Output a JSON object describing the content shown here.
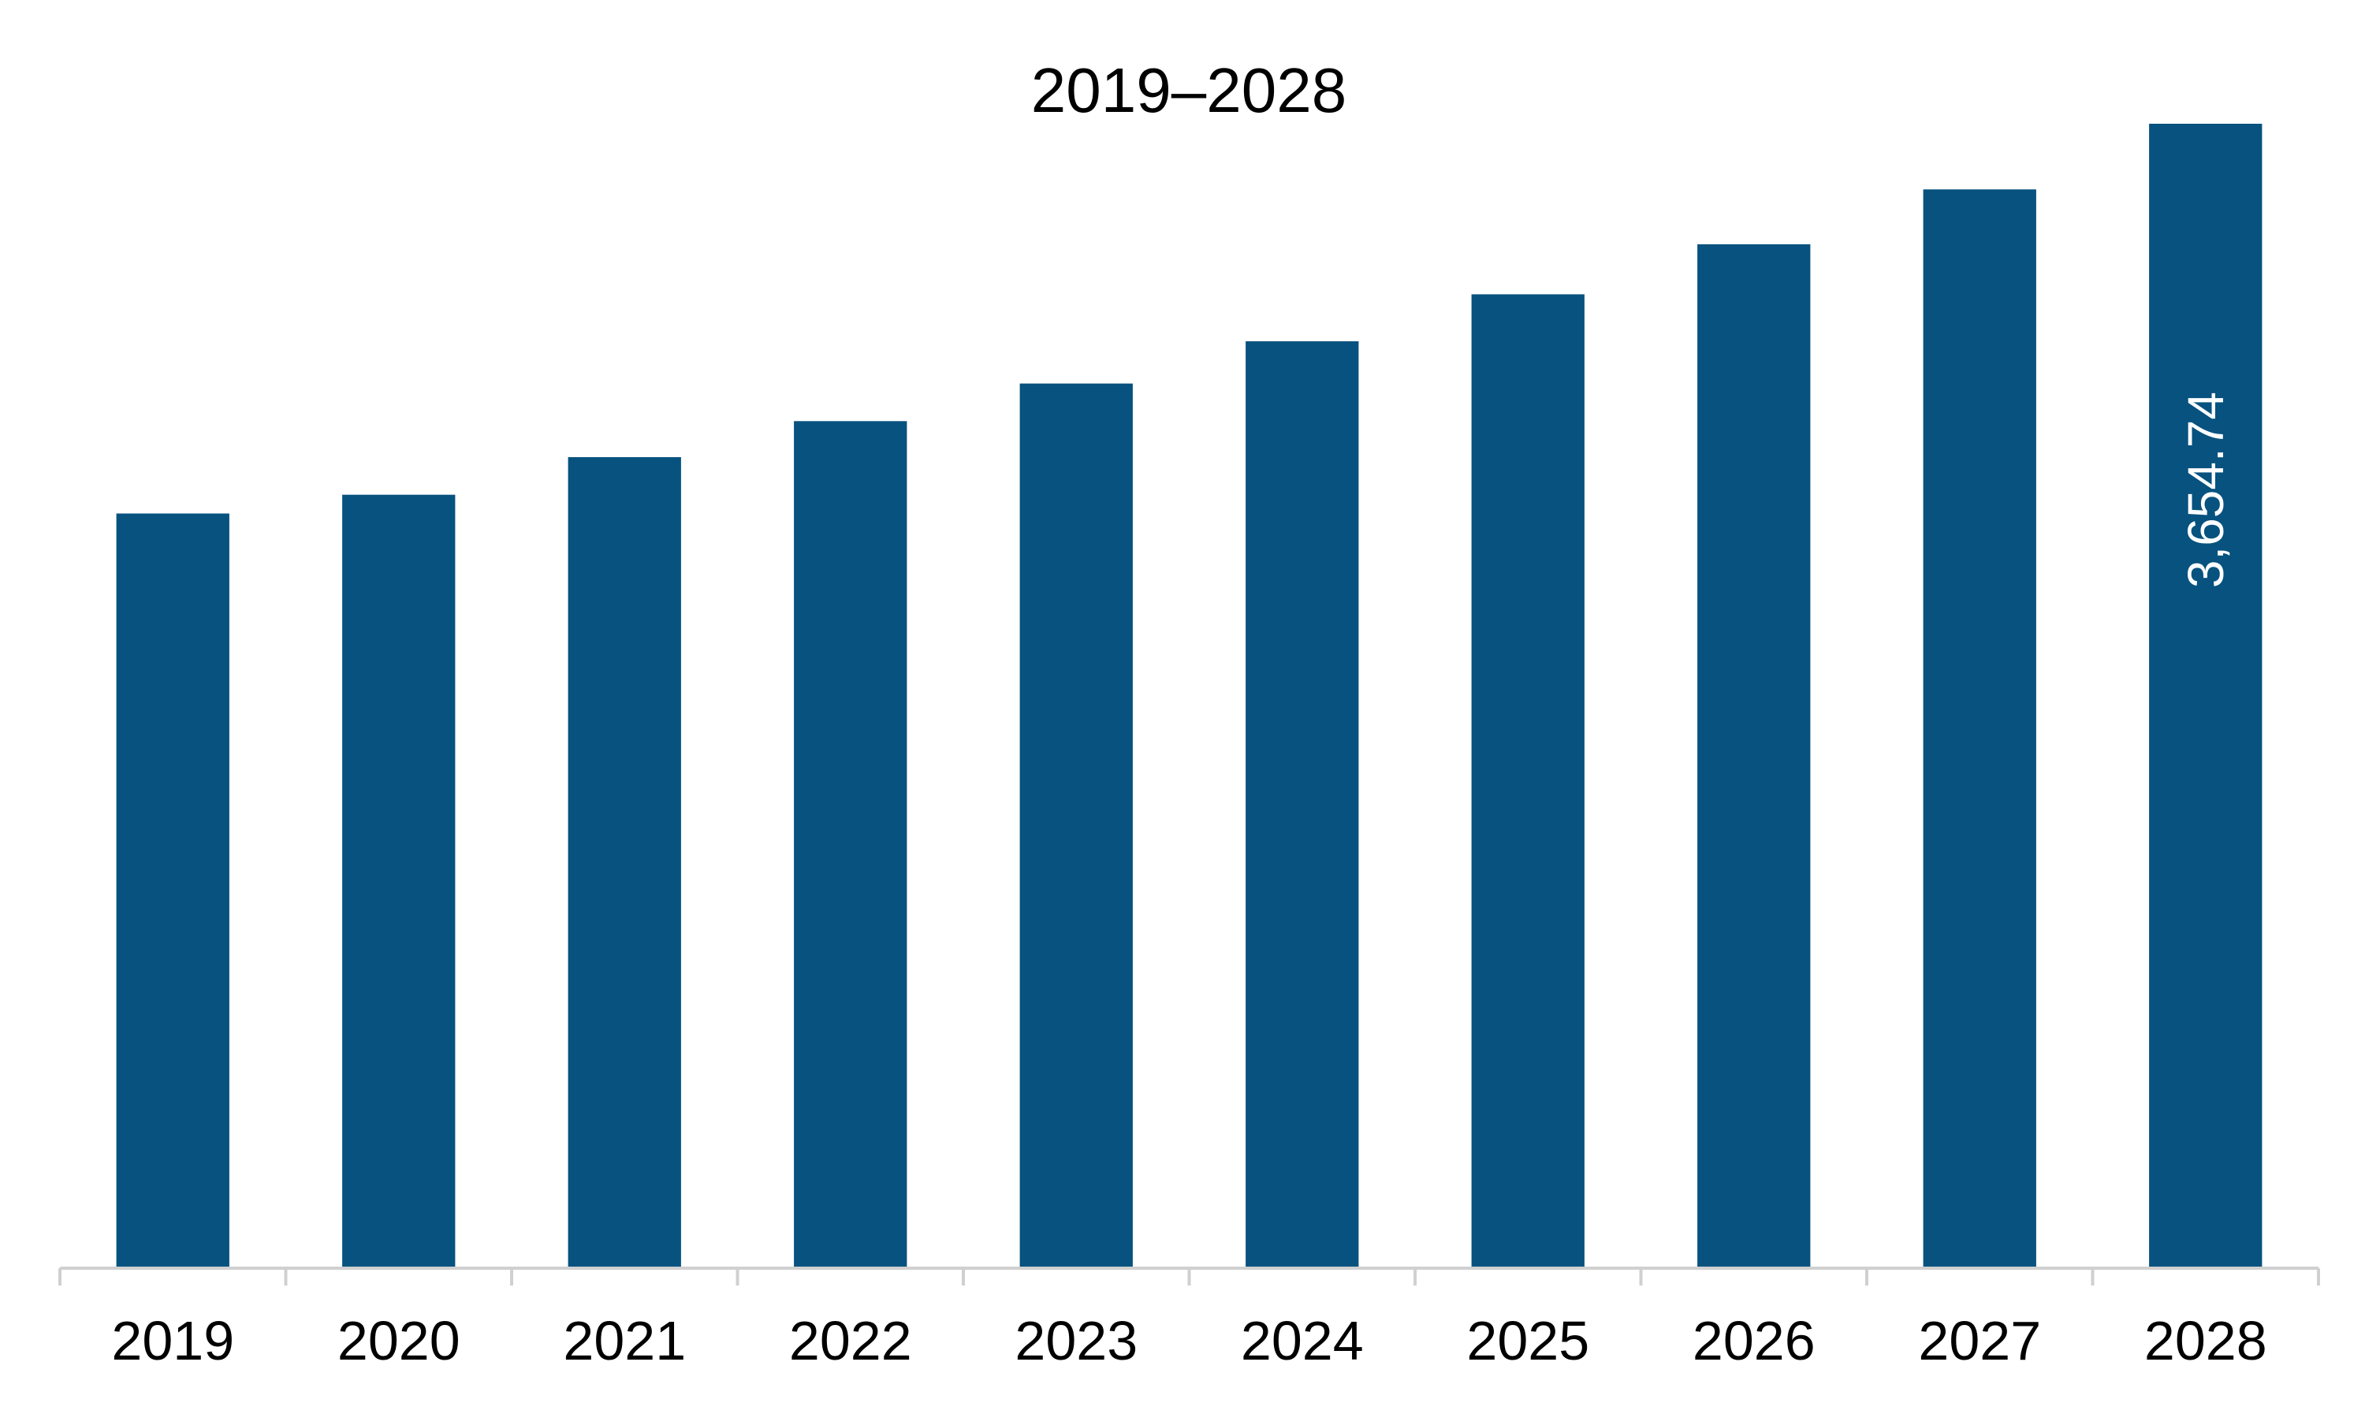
{
  "chart_data": {
    "type": "bar",
    "title": "2019–2028",
    "xlabel": "",
    "ylabel": "",
    "categories": [
      "2019",
      "2020",
      "2021",
      "2022",
      "2023",
      "2024",
      "2025",
      "2026",
      "2027",
      "2028"
    ],
    "values": [
      2410,
      2470,
      2590,
      2705,
      2825,
      2960,
      3110,
      3270,
      3445,
      3654.74
    ],
    "data_labels": [
      "",
      "",
      "",
      "",
      "",
      "",
      "",
      "",
      "",
      "3,654.74"
    ],
    "ylim": [
      0,
      3654.74
    ],
    "grid": false,
    "legend": "none",
    "bar_color": "#07527f",
    "axis_color": "#d0d0d0"
  }
}
